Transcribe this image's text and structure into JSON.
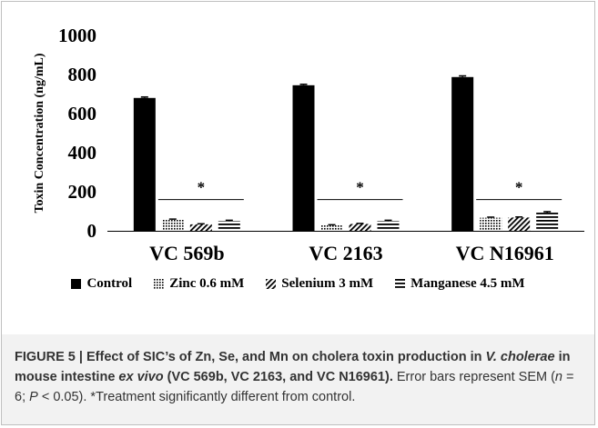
{
  "chart_data": {
    "type": "bar",
    "ylabel": "Toxin Concentration (ng/mL)",
    "xlabel": "",
    "ylim": [
      0,
      1000
    ],
    "yticks": [
      0,
      200,
      400,
      600,
      800,
      1000
    ],
    "grid": false,
    "legend_position": "bottom",
    "categories": [
      "VC 569b",
      "VC 2163",
      "VC N16961"
    ],
    "series": [
      {
        "name": "Control",
        "values": [
          680,
          745,
          787
        ],
        "err": [
          5,
          5,
          6
        ],
        "pattern": "solid"
      },
      {
        "name": "Zinc 0.6 mM",
        "values": [
          57,
          28,
          67
        ],
        "err": [
          3,
          3,
          3
        ],
        "pattern": "dots"
      },
      {
        "name": "Selenium 3 mM",
        "values": [
          33,
          35,
          68
        ],
        "err": [
          3,
          3,
          3
        ],
        "pattern": "diagonal"
      },
      {
        "name": "Manganese 4.5 mM",
        "values": [
          50,
          50,
          93
        ],
        "err": [
          4,
          4,
          5
        ],
        "pattern": "horizontal"
      }
    ],
    "annotations": [
      {
        "category": "VC 569b",
        "text": "*"
      },
      {
        "category": "VC 2163",
        "text": "*"
      },
      {
        "category": "VC N16961",
        "text": "*"
      }
    ],
    "colors": {
      "bar": "#000000",
      "axis": "#000000"
    }
  },
  "caption": {
    "label": "FIGURE 5 | ",
    "title_a": "Effect of SIC’s of Zn, Se, and Mn on cholera toxin production in ",
    "title_b": "V. cholerae",
    "title_c": " in mouse intestine ",
    "title_d": "ex vivo",
    "title_e": " (VC 569b, VC 2163, and VC N16961).",
    "body_a": " Error bars represent SEM (",
    "body_n": "n",
    "body_b": " = 6; ",
    "body_p": "P",
    "body_c": " < 0.05). *Treatment significantly different from control."
  }
}
